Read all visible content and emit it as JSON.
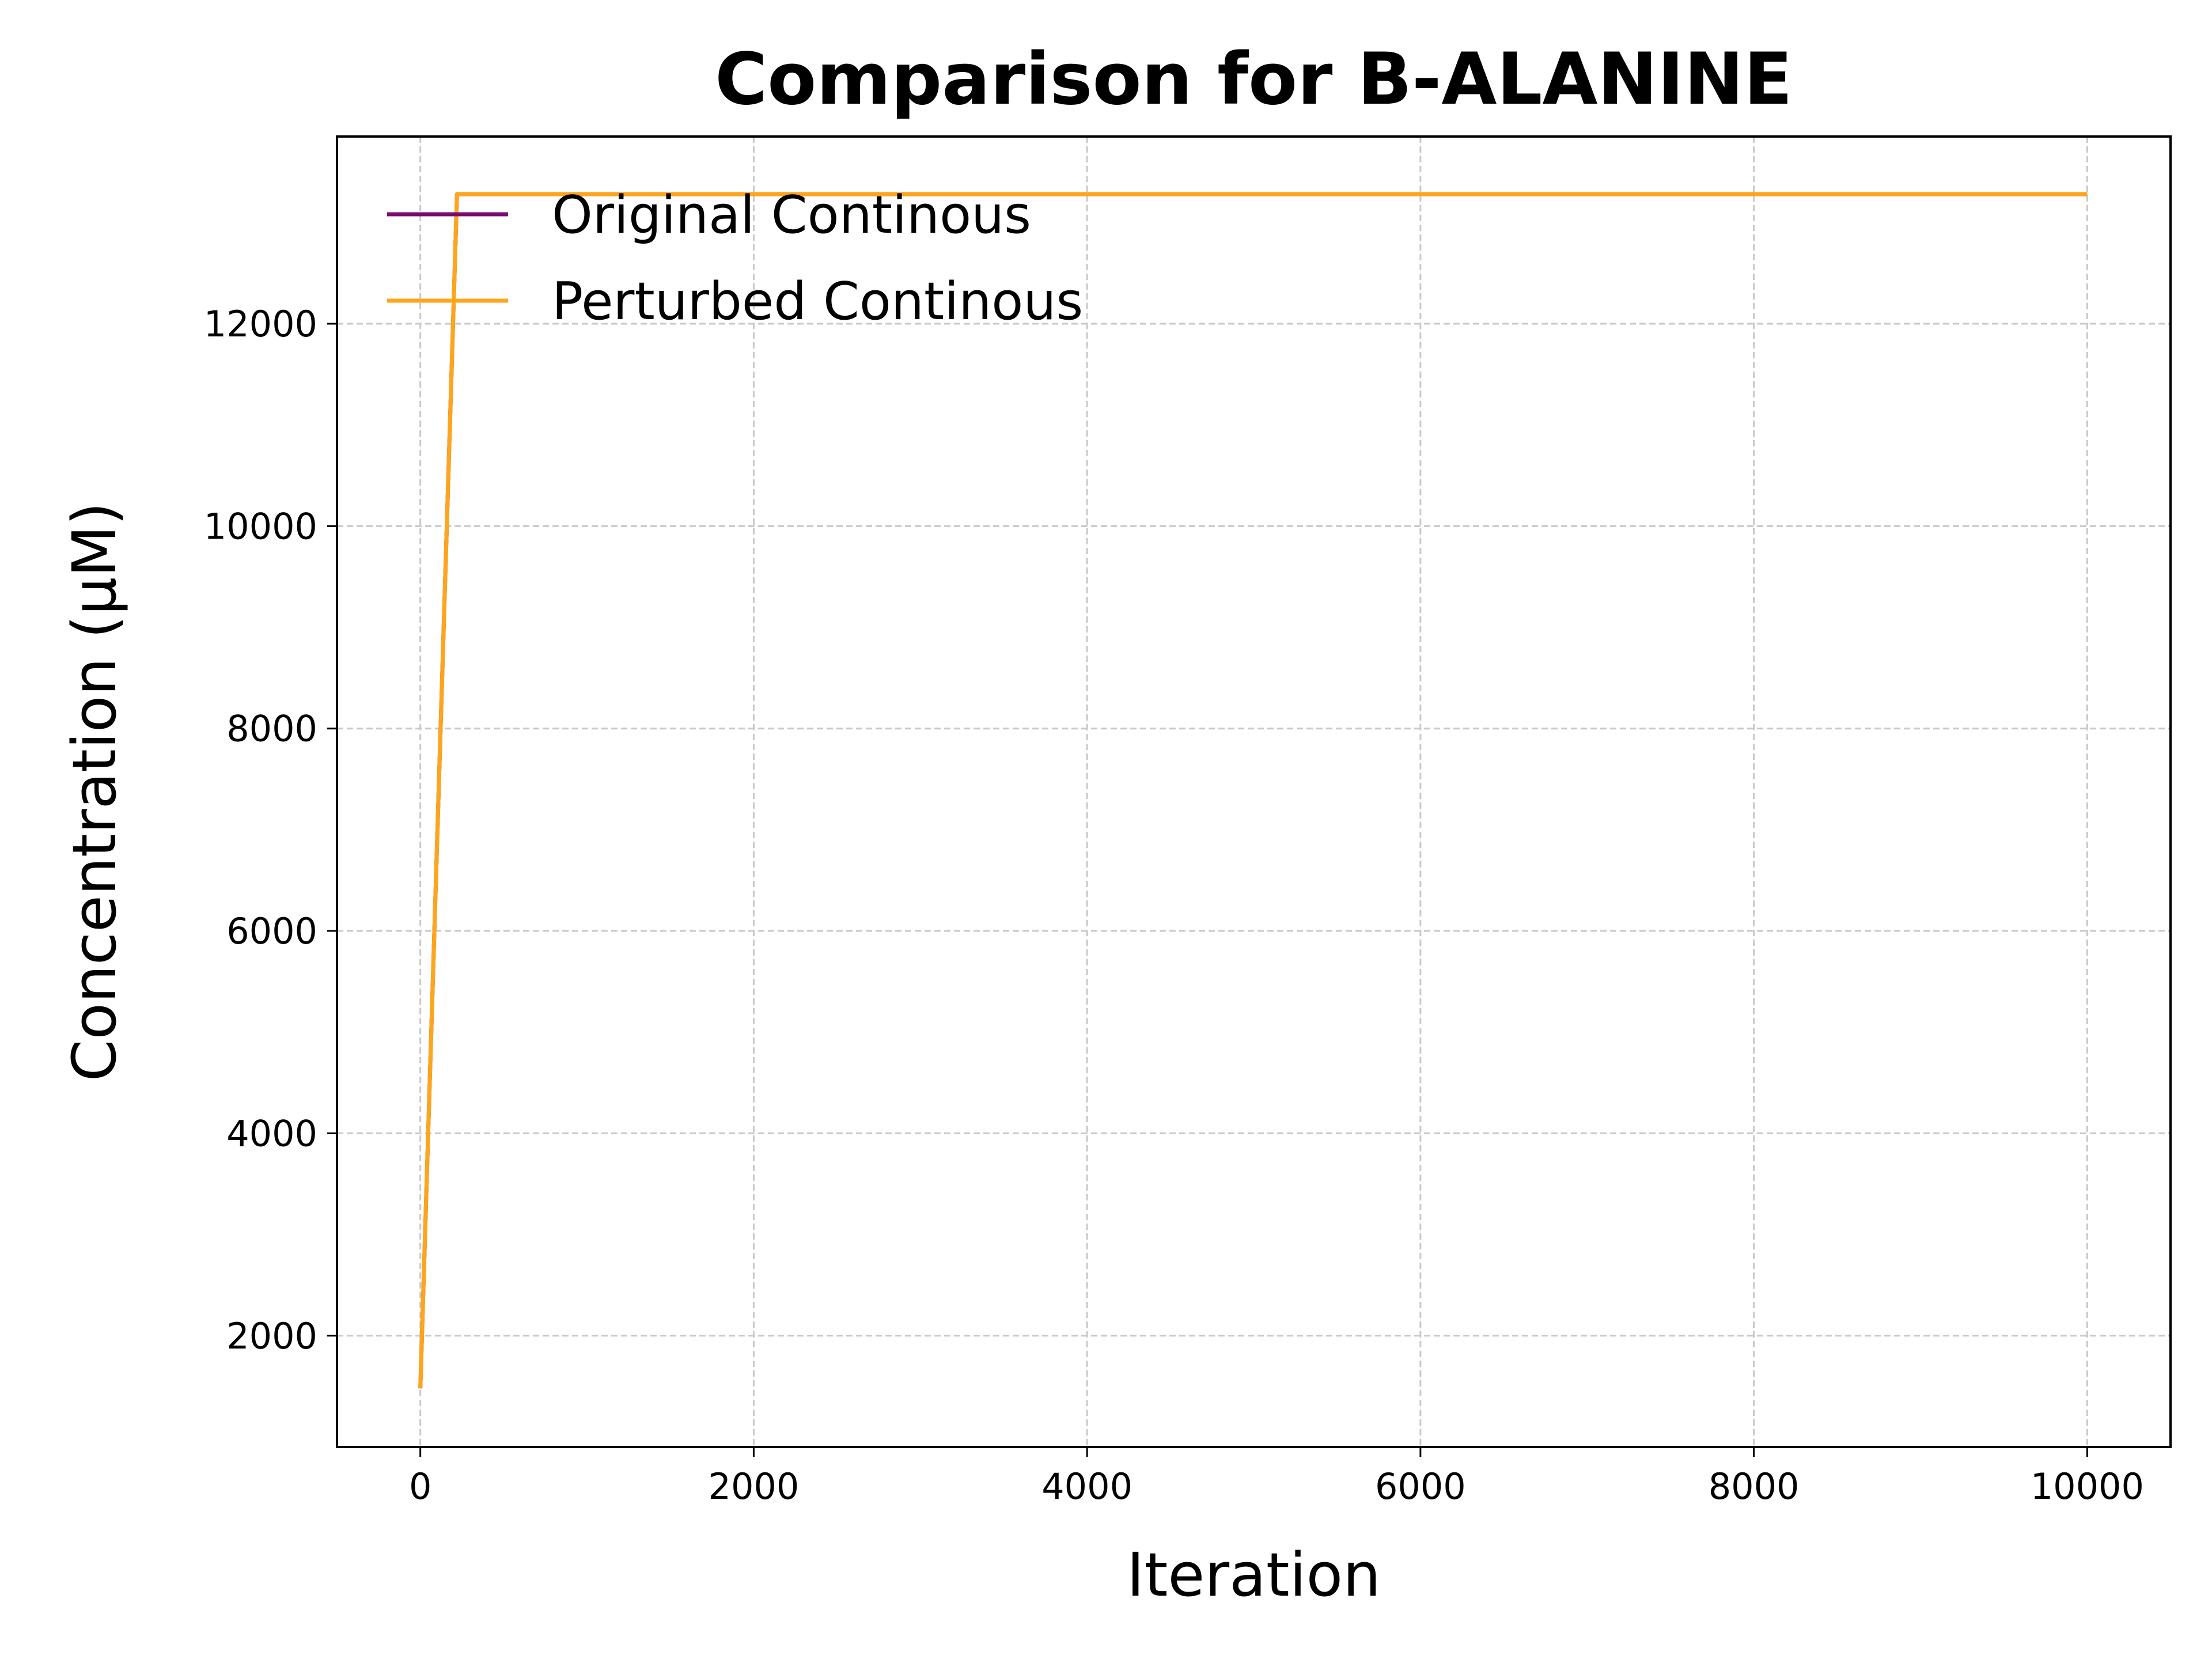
{
  "chart_data": {
    "type": "line",
    "title": "Comparison for B-ALANINE",
    "xlabel": "Iteration",
    "ylabel": "Concentration (μM)",
    "xlim": [
      -500,
      10500
    ],
    "ylim": [
      900,
      13850
    ],
    "xticks": [
      0,
      2000,
      4000,
      6000,
      8000,
      10000
    ],
    "yticks": [
      2000,
      4000,
      6000,
      8000,
      10000,
      12000
    ],
    "xtick_labels": [
      "0",
      "2000",
      "4000",
      "6000",
      "8000",
      "10000"
    ],
    "ytick_labels": [
      "2000",
      "4000",
      "6000",
      "8000",
      "10000",
      "12000"
    ],
    "grid": true,
    "legend_position": "top-left",
    "series": [
      {
        "name": "Original Continous",
        "color": "#7b0a70",
        "x": [
          0,
          220,
          10000
        ],
        "y": [
          1480,
          13280,
          13280
        ]
      },
      {
        "name": "Perturbed Continous",
        "color": "#ffa51a",
        "x": [
          0,
          220,
          10000
        ],
        "y": [
          1480,
          13280,
          13280
        ]
      }
    ]
  }
}
